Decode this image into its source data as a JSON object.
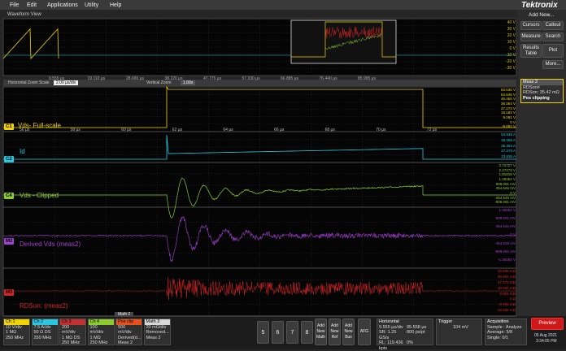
{
  "menu": [
    "File",
    "Edit",
    "Applications",
    "Utility",
    "Help"
  ],
  "logo": "Tektronix",
  "waveform_view": "Waveform View",
  "overview": {
    "ticks": [
      "9.555 µs",
      "19.110 µs",
      "28.665 µs",
      "38.220 µs",
      "47.775 µs",
      "57.330 µs",
      "66.885 µs",
      "76.440 µs",
      "85.995 µs"
    ],
    "scale": [
      "40 V",
      "30 V",
      "20 V",
      "10 V",
      "0 V",
      "-10 V",
      "-20 V",
      "-30 V"
    ]
  },
  "zoom_bar": {
    "h_label": "Horizontal Zoom Scale",
    "h_value": "2.00 µs/div",
    "v_label": "Vertical Zoom",
    "v_value": "1.00x"
  },
  "x_ticks": [
    "56 µs",
    "58 µs",
    "60 µs",
    "62 µs",
    "64 µs",
    "66 µs",
    "68 µs",
    "70 µs",
    "72 µs"
  ],
  "panes": [
    {
      "badge": "C1",
      "label": "Vds- Full-scale",
      "scale": [
        "63.636 V",
        "54.545 V",
        "45.455 V",
        "36.364 V",
        "27.273 V",
        "18.182 V",
        "9.091 V",
        "0 V",
        "-9.091 V"
      ]
    },
    {
      "badge": "C2",
      "label": "Id",
      "scale": [
        "54.545 A",
        "45.455 A",
        "36.364 A",
        "27.273 A",
        "13.636 A"
      ]
    },
    {
      "badge": "C4",
      "label": "Vds - Clipped",
      "scale": [
        "2.72727 V",
        "2.27273 V",
        "1.81818 V",
        "1.36364 V",
        "909.091 mV",
        "454.545 mV",
        "0 V",
        "-454.545 mV",
        "-909.091 mV"
      ]
    },
    {
      "badge": "M2",
      "label": "Derived Vds (meas2)",
      "scale": [
        "1.36364 V",
        "909.091 mV",
        "454.545 mV",
        "0 V",
        "-454.545 mV",
        "-909.091 mV",
        "-1.36364 V"
      ]
    },
    {
      "badge": "M3",
      "label": "RDSon: (meas2)",
      "scale": [
        "45.455 mΩ",
        "36.364 mΩ",
        "27.273 mΩ",
        "18.182 mΩ",
        "9.091 mΩ",
        "0 Ω",
        "-9.091 mΩ",
        "-18.182 mΩ"
      ]
    }
  ],
  "side_panel": {
    "add_new": "Add New...",
    "buttons": [
      "Cursors",
      "Callout",
      "Measure",
      "Search",
      "Results Table",
      "Plot",
      "More..."
    ],
    "meas": {
      "title": "Meas 2",
      "name": "RDSon#",
      "value": "RDSon: 35.42 mΩ",
      "note": "Pos clipping"
    }
  },
  "bottom_bar": {
    "channels": [
      {
        "title": "Ch 1",
        "lines": [
          "10 V/div",
          "1 MΩ",
          "250 MHz"
        ]
      },
      {
        "title": "Ch 2",
        "lines": [
          "7.5 A/div",
          "50 Ω DS",
          "250 MHz"
        ]
      },
      {
        "title": "Ch 3",
        "lines": [
          "200 mV/div",
          "1 MΩ DS",
          "250 MHz"
        ]
      },
      {
        "title": "Ch 4",
        "lines": [
          "100 mV/div",
          "1 MΩ",
          "250 MHz"
        ]
      },
      {
        "title": "Pos clip",
        "lines": [
          "500 mV/div",
          "Derived(d...",
          "Meas 2"
        ]
      },
      {
        "title": "Math 3",
        "lines": [
          "20 mΩ/div",
          "Removed...",
          "Meas 2"
        ]
      }
    ],
    "math_tab": "Math 2",
    "numbers": [
      "5",
      "6",
      "7",
      "8"
    ],
    "add_new": [
      "Add New Math",
      "Add New Ref",
      "Add New Bus"
    ],
    "afg": "AFG",
    "horizontal": {
      "title": "Horizontal",
      "lines": [
        "9.555 µs/div",
        "95.558 µs",
        "SR: 1.25 GS/s",
        "800 ps/pt",
        "RL: 119.436 kpts",
        "0%"
      ]
    },
    "trigger": {
      "title": "Trigger",
      "value": "104 mV"
    },
    "acquisition": {
      "title": "Acquisition",
      "lines": [
        "Sample : Analyze",
        "Average: 5/8",
        "Single: 0/1"
      ]
    },
    "preview": "Preview",
    "date": "05 Aug 2021",
    "time": "3:34:05 PM"
  }
}
